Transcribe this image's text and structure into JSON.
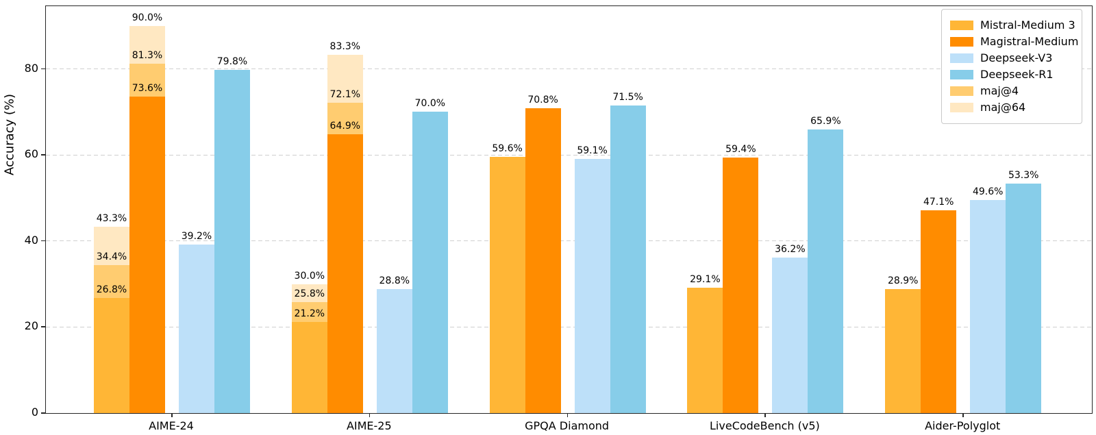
{
  "chart_data": {
    "type": "bar",
    "title": "",
    "xlabel": "",
    "ylabel": "Accuracy (%)",
    "ylim": [
      0,
      94.6
    ],
    "yticks": [
      0,
      20,
      40,
      60,
      80
    ],
    "grid": "horizontal dashed lines at 20/40/60/80",
    "legend_position": "upper right",
    "value_label_suffix": "%",
    "categories": [
      "AIME-24",
      "AIME-25",
      "GPQA Diamond",
      "LiveCodeBench (v5)",
      "Aider-Polyglot"
    ],
    "series": [
      {
        "name": "Mistral-Medium 3",
        "color": "#FFB636",
        "values": [
          26.8,
          21.2,
          59.6,
          29.1,
          28.9
        ],
        "maj4": [
          34.4,
          25.8,
          null,
          null,
          null
        ],
        "maj64": [
          43.3,
          30.0,
          null,
          null,
          null
        ]
      },
      {
        "name": "Magistral-Medium",
        "color": "#FF8C00",
        "values": [
          73.6,
          64.9,
          70.8,
          59.4,
          47.1
        ],
        "maj4": [
          81.3,
          72.1,
          null,
          null,
          null
        ],
        "maj64": [
          90.0,
          83.3,
          null,
          null,
          null
        ]
      },
      {
        "name": "Deepseek-V3",
        "color": "#BDE0F9",
        "values": [
          39.2,
          28.8,
          59.1,
          36.2,
          49.6
        ]
      },
      {
        "name": "Deepseek-R1",
        "color": "#87CDE9",
        "values": [
          79.8,
          70.0,
          71.5,
          65.9,
          53.3
        ]
      }
    ],
    "overlays": [
      {
        "name": "maj@4",
        "key": "maj4",
        "color": "#FFCC70"
      },
      {
        "name": "maj@64",
        "key": "maj64",
        "color": "#FFE8C2"
      }
    ],
    "colors": {
      "grid": "#cfcfcf",
      "spine": "#262626",
      "background": "#ffffff"
    }
  }
}
